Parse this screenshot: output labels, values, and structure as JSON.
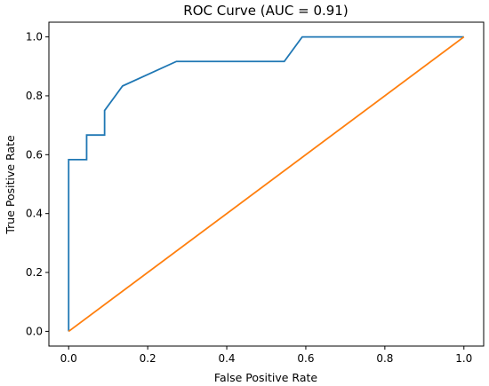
{
  "chart_data": {
    "type": "line",
    "title": "ROC Curve (AUC = 0.91)",
    "xlabel": "False Positive Rate",
    "ylabel": "True Positive Rate",
    "xlim": [
      -0.05,
      1.05
    ],
    "ylim": [
      -0.05,
      1.05
    ],
    "x_ticks": [
      "0.0",
      "0.2",
      "0.4",
      "0.6",
      "0.8",
      "1.0"
    ],
    "y_ticks": [
      "0.0",
      "0.2",
      "0.4",
      "0.6",
      "0.8",
      "1.0"
    ],
    "grid": false,
    "legend": "none",
    "series": [
      {
        "color": "#1f77b4",
        "x": [
          0.0,
          0.0,
          0.0455,
          0.0455,
          0.0909,
          0.0909,
          0.1364,
          0.2727,
          0.5455,
          0.5909,
          1.0
        ],
        "y": [
          0.0,
          0.5833,
          0.5833,
          0.6667,
          0.6667,
          0.75,
          0.8333,
          0.9167,
          0.9167,
          1.0,
          1.0
        ]
      },
      {
        "color": "#ff7f0e",
        "x": [
          0.0,
          1.0
        ],
        "y": [
          0.0,
          1.0
        ]
      }
    ]
  }
}
